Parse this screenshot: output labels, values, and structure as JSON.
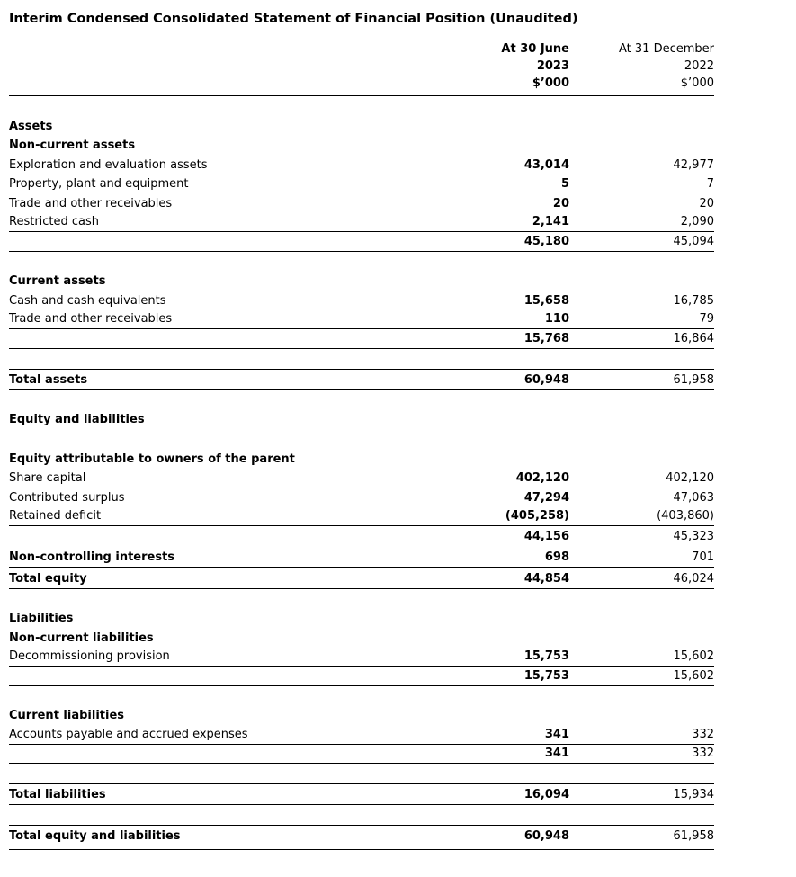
{
  "title": "Interim Condensed Consolidated Statement of Financial Position (Unaudited)",
  "header": {
    "col1": [
      "At 30 June",
      "2023",
      "$’000"
    ],
    "col2": [
      "At 31 December",
      "2022",
      "$’000"
    ]
  },
  "rows": [
    {
      "type": "section",
      "label": "Assets"
    },
    {
      "type": "section",
      "label": "Non-current assets"
    },
    {
      "type": "item",
      "label": "Exploration and evaluation assets",
      "v1": "43,014",
      "v2": "42,977"
    },
    {
      "type": "item",
      "label": "Property, plant and equipment",
      "v1": "5",
      "v2": "7"
    },
    {
      "type": "item",
      "label": "Trade and other receivables",
      "v1": "20",
      "v2": "20"
    },
    {
      "type": "item",
      "label": "Restricted cash",
      "v1": "2,141",
      "v2": "2,090",
      "border_bottom": true
    },
    {
      "type": "subtotal",
      "label": "",
      "v1": "45,180",
      "v2": "45,094",
      "border_bottom": true
    },
    {
      "type": "spacer"
    },
    {
      "type": "section",
      "label": "Current assets"
    },
    {
      "type": "item",
      "label": "Cash and cash equivalents",
      "v1": "15,658",
      "v2": "16,785"
    },
    {
      "type": "item",
      "label": "Trade and other receivables",
      "v1": "110",
      "v2": "79",
      "border_bottom": true
    },
    {
      "type": "subtotal",
      "label": "",
      "v1": "15,768",
      "v2": "16,864",
      "border_bottom": true
    },
    {
      "type": "spacer"
    },
    {
      "type": "total",
      "label": "Total assets",
      "v1": "60,948",
      "v2": "61,958",
      "border_top": true,
      "border_bottom": true
    },
    {
      "type": "spacer"
    },
    {
      "type": "section",
      "label": "Equity and liabilities"
    },
    {
      "type": "spacer"
    },
    {
      "type": "section",
      "label": "Equity attributable to owners of the parent",
      "wrap": true
    },
    {
      "type": "item",
      "label": "Share capital",
      "v1": "402,120",
      "v2": "402,120"
    },
    {
      "type": "item",
      "label": "Contributed surplus",
      "v1": "47,294",
      "v2": "47,063"
    },
    {
      "type": "item",
      "label": "Retained deficit",
      "v1": "(405,258)",
      "v2": "(403,860)",
      "border_bottom": true
    },
    {
      "type": "subtotal",
      "label": "",
      "v1": "44,156",
      "v2": "45,323"
    },
    {
      "type": "total",
      "label": "Non-controlling interests",
      "v1": "698",
      "v2": "701",
      "border_bottom": true
    },
    {
      "type": "total",
      "label": "Total equity",
      "v1": "44,854",
      "v2": "46,024",
      "border_bottom": true
    },
    {
      "type": "spacer"
    },
    {
      "type": "section",
      "label": "Liabilities"
    },
    {
      "type": "section",
      "label": "Non-current liabilities"
    },
    {
      "type": "item",
      "label": "Decommissioning provision",
      "v1": "15,753",
      "v2": "15,602",
      "border_bottom": true
    },
    {
      "type": "subtotal",
      "label": "",
      "v1": "15,753",
      "v2": "15,602",
      "border_bottom": true
    },
    {
      "type": "spacer"
    },
    {
      "type": "section",
      "label": "Current liabilities"
    },
    {
      "type": "item",
      "label": "Accounts payable and accrued expenses",
      "v1": "341",
      "v2": "332",
      "border_bottom": true
    },
    {
      "type": "subtotal",
      "label": "",
      "v1": "341",
      "v2": "332",
      "border_bottom": true
    },
    {
      "type": "spacer"
    },
    {
      "type": "total",
      "label": "Total liabilities",
      "v1": "16,094",
      "v2": "15,934",
      "border_top": true,
      "border_bottom": true
    },
    {
      "type": "spacer"
    },
    {
      "type": "total",
      "label": "Total equity and liabilities",
      "v1": "60,948",
      "v2": "61,958",
      "border_top": true,
      "border_bottom": true,
      "double_bottom": true
    }
  ]
}
